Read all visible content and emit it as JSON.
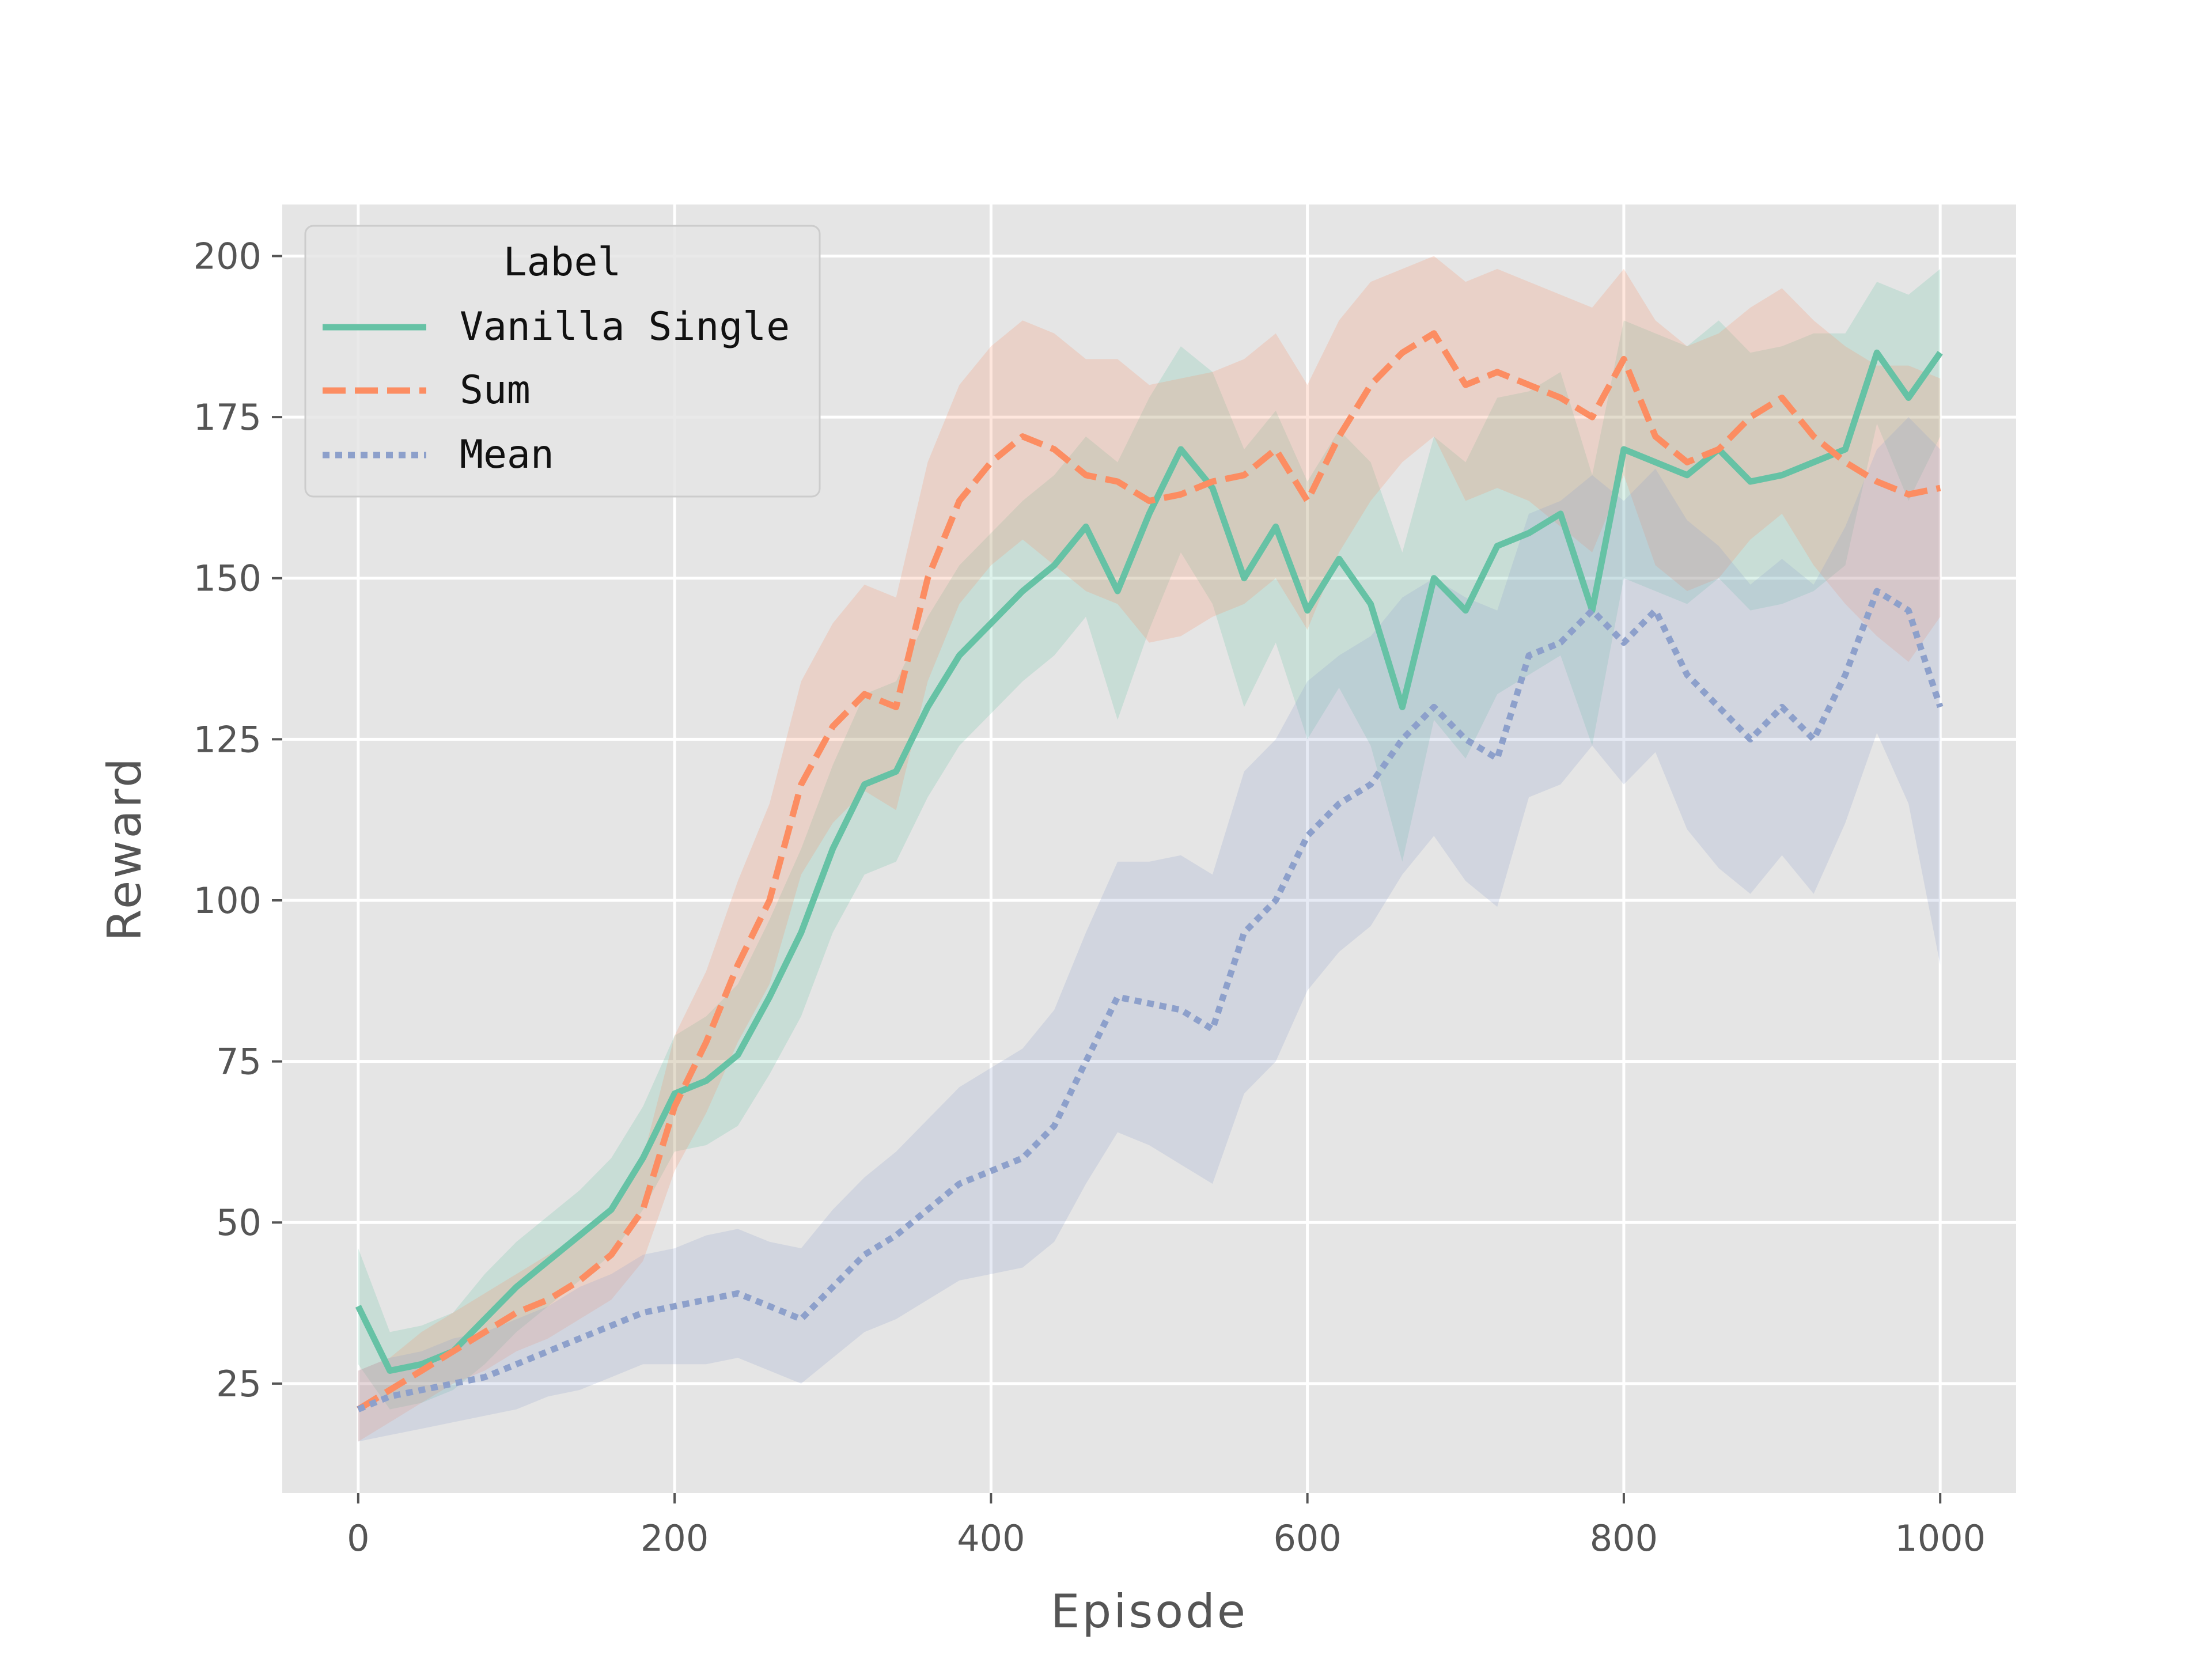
{
  "chart_data": {
    "type": "line",
    "xlabel": "Episode",
    "ylabel": "Reward",
    "xlim": [
      -48,
      1048
    ],
    "ylim": [
      8,
      208
    ],
    "xticks": [
      0,
      200,
      400,
      600,
      800,
      1000
    ],
    "yticks": [
      25,
      50,
      75,
      100,
      125,
      150,
      175,
      200
    ],
    "grid": true,
    "legend": {
      "title": "Label",
      "placement": "top-left"
    },
    "x": [
      0,
      20,
      40,
      60,
      80,
      100,
      120,
      140,
      160,
      180,
      200,
      220,
      240,
      260,
      280,
      300,
      320,
      340,
      360,
      380,
      400,
      420,
      440,
      460,
      480,
      500,
      520,
      540,
      560,
      580,
      600,
      620,
      640,
      660,
      680,
      700,
      720,
      740,
      760,
      780,
      800,
      820,
      840,
      860,
      880,
      900,
      920,
      940,
      960,
      980,
      1000
    ],
    "series": [
      {
        "name": "Vanilla Single",
        "color": "#66c2a5",
        "style": "solid",
        "values": [
          37,
          27,
          28,
          30,
          35,
          40,
          44,
          48,
          52,
          60,
          70,
          72,
          76,
          85,
          95,
          108,
          118,
          120,
          130,
          138,
          143,
          148,
          152,
          158,
          148,
          160,
          170,
          164,
          150,
          158,
          145,
          153,
          146,
          130,
          150,
          145,
          155,
          157,
          160,
          145,
          170,
          168,
          166,
          170,
          165,
          166,
          168,
          170,
          185,
          178,
          185
        ],
        "band": [
          [
            28,
            46
          ],
          [
            21,
            33
          ],
          [
            22,
            34
          ],
          [
            24,
            36
          ],
          [
            28,
            42
          ],
          [
            33,
            47
          ],
          [
            37,
            51
          ],
          [
            41,
            55
          ],
          [
            45,
            60
          ],
          [
            52,
            68
          ],
          [
            61,
            79
          ],
          [
            62,
            82
          ],
          [
            65,
            87
          ],
          [
            73,
            97
          ],
          [
            82,
            108
          ],
          [
            95,
            121
          ],
          [
            104,
            132
          ],
          [
            106,
            134
          ],
          [
            116,
            144
          ],
          [
            124,
            152
          ],
          [
            129,
            157
          ],
          [
            134,
            162
          ],
          [
            138,
            166
          ],
          [
            144,
            172
          ],
          [
            128,
            168
          ],
          [
            142,
            178
          ],
          [
            154,
            186
          ],
          [
            146,
            182
          ],
          [
            130,
            170
          ],
          [
            140,
            176
          ],
          [
            125,
            165
          ],
          [
            133,
            173
          ],
          [
            124,
            168
          ],
          [
            106,
            154
          ],
          [
            128,
            172
          ],
          [
            122,
            168
          ],
          [
            132,
            178
          ],
          [
            135,
            179
          ],
          [
            138,
            182
          ],
          [
            124,
            166
          ],
          [
            150,
            190
          ],
          [
            148,
            188
          ],
          [
            146,
            186
          ],
          [
            150,
            190
          ],
          [
            145,
            185
          ],
          [
            146,
            186
          ],
          [
            148,
            188
          ],
          [
            152,
            188
          ],
          [
            174,
            196
          ],
          [
            162,
            194
          ],
          [
            172,
            198
          ]
        ]
      },
      {
        "name": "Sum",
        "color": "#fc8d62",
        "style": "dashed",
        "values": [
          21,
          24,
          27,
          30,
          33,
          36,
          38,
          41,
          45,
          52,
          68,
          78,
          90,
          100,
          118,
          127,
          132,
          130,
          150,
          162,
          168,
          172,
          170,
          166,
          165,
          162,
          163,
          165,
          166,
          170,
          162,
          172,
          180,
          185,
          188,
          180,
          182,
          180,
          178,
          175,
          184,
          172,
          168,
          170,
          175,
          178,
          172,
          168,
          165,
          163,
          164
        ],
        "band": [
          [
            16,
            27
          ],
          [
            19,
            29
          ],
          [
            22,
            33
          ],
          [
            25,
            36
          ],
          [
            27,
            39
          ],
          [
            30,
            42
          ],
          [
            32,
            45
          ],
          [
            35,
            48
          ],
          [
            38,
            52
          ],
          [
            44,
            60
          ],
          [
            58,
            79
          ],
          [
            67,
            89
          ],
          [
            78,
            103
          ],
          [
            87,
            115
          ],
          [
            104,
            134
          ],
          [
            112,
            143
          ],
          [
            117,
            149
          ],
          [
            114,
            147
          ],
          [
            134,
            168
          ],
          [
            146,
            180
          ],
          [
            152,
            186
          ],
          [
            156,
            190
          ],
          [
            152,
            188
          ],
          [
            148,
            184
          ],
          [
            146,
            184
          ],
          [
            140,
            180
          ],
          [
            141,
            181
          ],
          [
            144,
            182
          ],
          [
            146,
            184
          ],
          [
            150,
            188
          ],
          [
            142,
            180
          ],
          [
            154,
            190
          ],
          [
            162,
            196
          ],
          [
            168,
            198
          ],
          [
            172,
            200
          ],
          [
            162,
            196
          ],
          [
            164,
            198
          ],
          [
            162,
            196
          ],
          [
            158,
            194
          ],
          [
            154,
            192
          ],
          [
            166,
            198
          ],
          [
            152,
            190
          ],
          [
            148,
            186
          ],
          [
            150,
            188
          ],
          [
            156,
            192
          ],
          [
            160,
            195
          ],
          [
            152,
            190
          ],
          [
            146,
            186
          ],
          [
            141,
            183
          ],
          [
            137,
            183
          ],
          [
            144,
            181
          ]
        ]
      },
      {
        "name": "Mean",
        "color": "#8da0cb",
        "style": "dotted",
        "values": [
          21,
          23,
          24,
          25,
          26,
          28,
          30,
          32,
          34,
          36,
          37,
          38,
          39,
          37,
          35,
          40,
          45,
          48,
          52,
          56,
          58,
          60,
          65,
          75,
          85,
          84,
          83,
          80,
          95,
          100,
          110,
          115,
          118,
          125,
          130,
          125,
          122,
          138,
          140,
          145,
          140,
          145,
          135,
          130,
          125,
          130,
          125,
          135,
          148,
          145,
          130
        ],
        "band": [
          [
            16,
            27
          ],
          [
            17,
            29
          ],
          [
            18,
            30
          ],
          [
            19,
            32
          ],
          [
            20,
            33
          ],
          [
            21,
            35
          ],
          [
            23,
            37
          ],
          [
            24,
            40
          ],
          [
            26,
            42
          ],
          [
            28,
            45
          ],
          [
            28,
            46
          ],
          [
            28,
            48
          ],
          [
            29,
            49
          ],
          [
            27,
            47
          ],
          [
            25,
            46
          ],
          [
            29,
            52
          ],
          [
            33,
            57
          ],
          [
            35,
            61
          ],
          [
            38,
            66
          ],
          [
            41,
            71
          ],
          [
            42,
            74
          ],
          [
            43,
            77
          ],
          [
            47,
            83
          ],
          [
            56,
            95
          ],
          [
            64,
            106
          ],
          [
            62,
            106
          ],
          [
            59,
            107
          ],
          [
            56,
            104
          ],
          [
            70,
            120
          ],
          [
            75,
            125
          ],
          [
            86,
            134
          ],
          [
            92,
            138
          ],
          [
            96,
            141
          ],
          [
            104,
            147
          ],
          [
            110,
            150
          ],
          [
            103,
            147
          ],
          [
            99,
            145
          ],
          [
            116,
            160
          ],
          [
            118,
            162
          ],
          [
            124,
            166
          ],
          [
            118,
            162
          ],
          [
            123,
            167
          ],
          [
            111,
            159
          ],
          [
            105,
            155
          ],
          [
            101,
            149
          ],
          [
            107,
            153
          ],
          [
            101,
            149
          ],
          [
            112,
            158
          ],
          [
            126,
            170
          ],
          [
            115,
            175
          ],
          [
            90,
            170
          ]
        ]
      }
    ]
  }
}
